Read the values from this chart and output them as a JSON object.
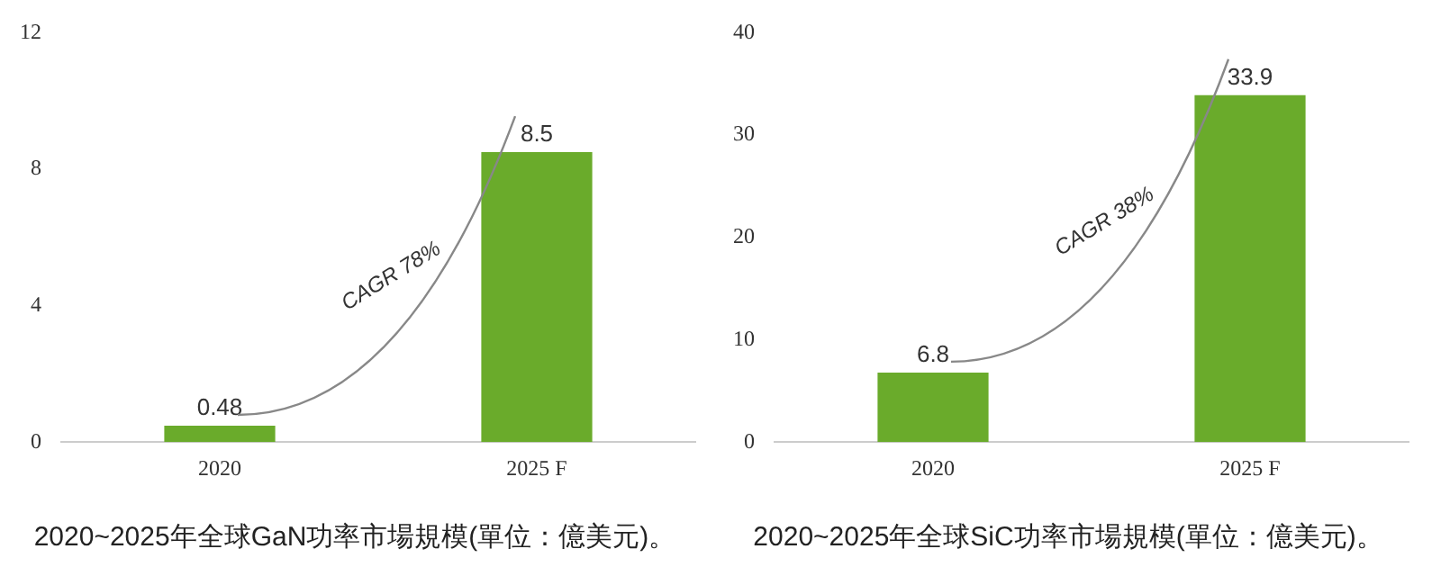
{
  "chart_data": [
    {
      "type": "bar",
      "title": "2020~2025年全球GaN功率市場規模(單位：億美元)。",
      "categories": [
        "2020",
        "2025 F"
      ],
      "values": [
        0.48,
        8.5
      ],
      "color": "#6aab2b",
      "ylim": [
        0,
        12
      ],
      "yticks": [
        0,
        4,
        8,
        12
      ],
      "grid": false,
      "data_labels": true,
      "annotations": [
        "CAGR 78%"
      ]
    },
    {
      "type": "bar",
      "title": "2020~2025年全球SiC功率市場規模(單位：億美元)。",
      "categories": [
        "2020",
        "2025 F"
      ],
      "values": [
        6.8,
        33.9
      ],
      "color": "#6aab2b",
      "ylim": [
        0,
        40
      ],
      "yticks": [
        0,
        10,
        20,
        30,
        40
      ],
      "grid": false,
      "data_labels": true,
      "annotations": [
        "CAGR 38%"
      ]
    }
  ]
}
